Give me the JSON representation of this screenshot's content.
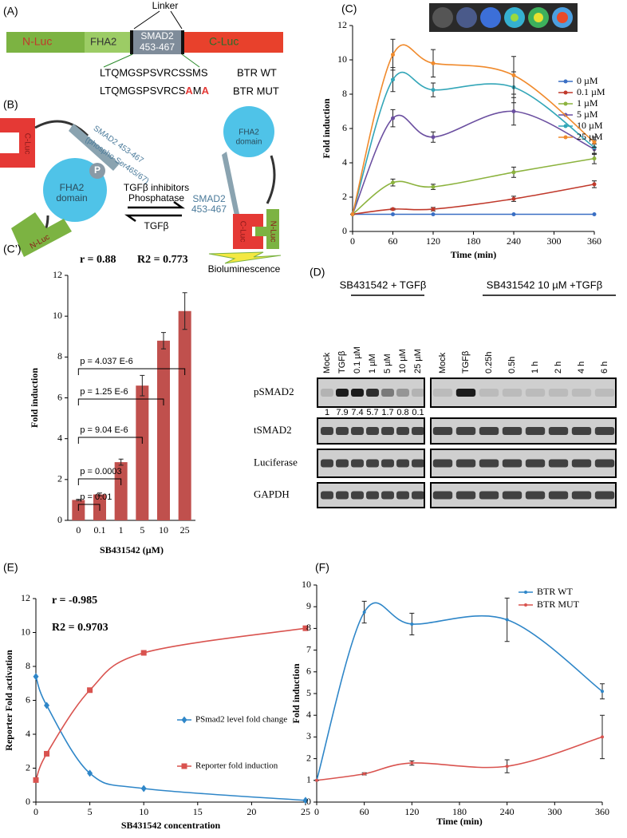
{
  "panel_labels": [
    "(A)",
    "(B)",
    "(C)",
    "(C’)",
    "(D)",
    "(E)",
    "(F)"
  ],
  "diagram_a": {
    "linker": "Linker",
    "n_luc": "N-Luc",
    "fha2": "FHA2",
    "smad2": [
      "SMAD2",
      "453-467"
    ],
    "c_luc": "C-Luc",
    "wt_sequence": "LTQMGSPSVRCSSMS",
    "wt_label": "BTR WT",
    "mut_sequence": [
      "LTQMGSPSVRCS",
      "A",
      "M",
      "A"
    ],
    "mut_label": "BTR MUT"
  },
  "diagram_b": {
    "left_c_luc": "C-Luc",
    "phospho": "P",
    "left_fha2": [
      "FHA2",
      "domain"
    ],
    "left_smad2": [
      "SMAD2 453-467",
      "(phospho-Ser465/67)"
    ],
    "left_n_luc": "N-Luc",
    "forward": [
      "TGFβ inhibitors",
      "Phosphatase"
    ],
    "reverse": "TGFβ",
    "right_smad2": [
      "SMAD2",
      "453-467"
    ],
    "right_fha2": [
      "FHA2",
      "domain"
    ],
    "right_c_luc": "C-Luc",
    "right_n_luc": "N-Luc",
    "signal": "Bioluminescence"
  },
  "blot_d": {
    "groups": [
      {
        "title": "SB431542 + TGFβ",
        "lanes": [
          "Mock",
          "TGFβ",
          "0.1 µM",
          "1 µM",
          "5 µM",
          "10 µM",
          "25 µM"
        ]
      },
      {
        "title": "SB431542 10 µM +TGFβ",
        "lanes": [
          "Mock",
          "TGFβ",
          "0.25h",
          "0.5h",
          "1 h",
          "2 h",
          "4 h",
          "6 h"
        ]
      }
    ],
    "rows": [
      "pSMAD2",
      "tSMAD2",
      "Luciferase",
      "GAPDH"
    ],
    "quantification": [
      1,
      7.9,
      7.4,
      5.7,
      1.7,
      0.8,
      0.1
    ]
  },
  "chart_data": [
    {
      "type": "line",
      "x_label": "Time (min)",
      "y_label": "Fold induction",
      "x": [
        0,
        60,
        120,
        240,
        360
      ],
      "xlim": [
        0,
        360
      ],
      "xticks": [
        0,
        60,
        120,
        180,
        240,
        300,
        360
      ],
      "ylim": [
        0,
        12
      ],
      "yticks": [
        0,
        2,
        4,
        6,
        8,
        10,
        12
      ],
      "legend": "right",
      "series": [
        {
          "name": "0 µM",
          "color": "#3a6fc4",
          "values": [
            1,
            1,
            1,
            1,
            1
          ]
        },
        {
          "name": "0.1 µM",
          "color": "#c0392b",
          "values": [
            1,
            1.3,
            1.3,
            1.9,
            2.75
          ],
          "errors": [
            0,
            0.05,
            0.1,
            0.15,
            0.2
          ]
        },
        {
          "name": "1 µM",
          "color": "#8cb33e",
          "values": [
            1,
            2.85,
            2.6,
            3.45,
            4.25
          ],
          "errors": [
            0,
            0.2,
            0.15,
            0.3,
            0.3
          ]
        },
        {
          "name": "5 µM",
          "color": "#6b4fa0",
          "values": [
            1,
            6.6,
            5.5,
            7.0,
            4.8
          ],
          "errors": [
            0,
            0.5,
            0.3,
            0.8,
            0.3
          ]
        },
        {
          "name": "10 µM",
          "color": "#33a6b8",
          "values": [
            1,
            8.85,
            8.25,
            8.4,
            4.9
          ],
          "errors": [
            0,
            0.7,
            0.4,
            0.9,
            0.4
          ]
        },
        {
          "name": "25 µM",
          "color": "#f08a2c",
          "values": [
            1,
            10.3,
            9.8,
            9.1,
            5.2
          ],
          "errors": [
            0,
            0.9,
            0.8,
            1.1,
            0.3
          ]
        }
      ]
    },
    {
      "type": "bar",
      "x_label": "SB431542 (µM)",
      "y_label": "Fold induction",
      "color": "#c0504d",
      "stats": [
        "r = 0.88",
        "R2 = 0.773"
      ],
      "categories": [
        "0",
        "0.1",
        "1",
        "5",
        "10",
        "25"
      ],
      "values": [
        1,
        1.27,
        2.85,
        6.6,
        8.8,
        10.25
      ],
      "errors": [
        0.03,
        0.07,
        0.15,
        0.5,
        0.4,
        0.9
      ],
      "annotations": [
        "p = 0.01",
        "p = 0.0003",
        "p = 9.04 E-6",
        "p = 1.25 E-6",
        "p = 4.037 E-6"
      ],
      "ylim": [
        0,
        12
      ],
      "yticks": [
        0,
        2,
        4,
        6,
        8,
        10,
        12
      ]
    },
    {
      "type": "line",
      "x_label": "SB431542 concentration",
      "y_label": "Reporter Fold activation",
      "stats": [
        "r = -0.985",
        "R2 = 0.9703"
      ],
      "x": [
        0,
        1,
        5,
        10,
        25
      ],
      "xlim": [
        0,
        25
      ],
      "xticks": [
        0,
        5,
        10,
        15,
        20,
        25
      ],
      "ylim": [
        0,
        12
      ],
      "yticks": [
        0,
        2,
        4,
        6,
        8,
        10,
        12
      ],
      "legend": "center",
      "series": [
        {
          "name": "PSmad2 level fold change",
          "color": "#2e86c8",
          "marker": "diamond",
          "values": [
            7.4,
            5.7,
            1.7,
            0.8,
            0.1
          ]
        },
        {
          "name": "Reporter fold induction",
          "color": "#d9534f",
          "marker": "square",
          "values": [
            1.3,
            2.85,
            6.6,
            8.8,
            10.25
          ]
        }
      ]
    },
    {
      "type": "line",
      "x_label": "Time (min)",
      "y_label": "Fold induction",
      "x": [
        0,
        60,
        120,
        240,
        360
      ],
      "xlim": [
        0,
        360
      ],
      "xticks": [
        0,
        60,
        120,
        180,
        240,
        300,
        360
      ],
      "ylim": [
        0,
        10
      ],
      "yticks": [
        0,
        1,
        2,
        3,
        4,
        5,
        6,
        7,
        8,
        9,
        10
      ],
      "legend": "top-right",
      "series": [
        {
          "name": "BTR WT",
          "color": "#2e86c8",
          "values": [
            1,
            8.75,
            8.2,
            8.4,
            5.1
          ],
          "errors": [
            0,
            0.5,
            0.5,
            1.0,
            0.35
          ]
        },
        {
          "name": "BTR MUT",
          "color": "#d9534f",
          "values": [
            1,
            1.3,
            1.8,
            1.65,
            3.0
          ],
          "errors": [
            0,
            0.05,
            0.1,
            0.3,
            1.0
          ]
        }
      ]
    }
  ]
}
